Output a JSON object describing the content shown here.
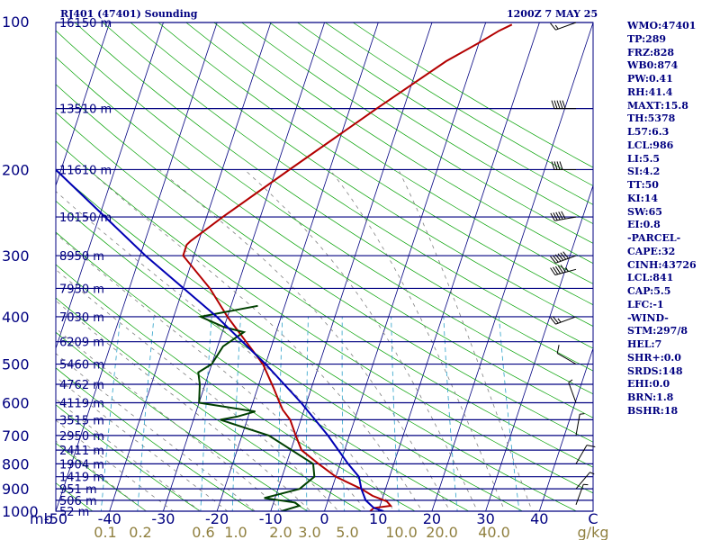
{
  "header": {
    "station": "RJ401 (47401) Sounding",
    "time": "1200Z  7 MAY 25"
  },
  "stats": [
    "WMO:47401",
    "TP:289",
    "FRZ:828",
    "WB0:874",
    "PW:0.41",
    "RH:41.4",
    "MAXT:15.8",
    "TH:5378",
    "L57:6.3",
    "LCL:986",
    "LI:5.5",
    "SI:4.2",
    "TT:50",
    "KI:14",
    "SW:65",
    "EI:0.8",
    "-PARCEL-",
    "CAPE:32",
    "CINH:43726",
    "LCL:841",
    "CAP:5.5",
    "LFC:-1",
    "-WIND-",
    "STM:297/8",
    "HEL:7",
    "SHR+:0.0",
    "SRDS:148",
    "EHI:0.0",
    "BRN:1.8",
    "BSHR:18"
  ],
  "chart_data": {
    "type": "line",
    "title": "RJ401 (47401) Sounding",
    "xlabel": "C",
    "ylabel": "mb",
    "xlim": [
      -50,
      50
    ],
    "ylim": [
      1000,
      100
    ],
    "y_scale": "log",
    "x_ticks": [
      "-50",
      "-40",
      "-30",
      "-20",
      "-10",
      "0",
      "10",
      "20",
      "30",
      "40",
      "C"
    ],
    "mixing_ratio_ticks": [
      "0.1",
      "0.2",
      "0.6",
      "1.0",
      "2.0",
      "3.0",
      "5.0",
      "10.0",
      "20.0",
      "40.0",
      "g/kg"
    ],
    "pressure_ticks": [
      {
        "p": 100,
        "label": "100"
      },
      {
        "p": 200,
        "label": "200"
      },
      {
        "p": 300,
        "label": "300"
      },
      {
        "p": 400,
        "label": "400"
      },
      {
        "p": 500,
        "label": "500"
      },
      {
        "p": 600,
        "label": "600"
      },
      {
        "p": 700,
        "label": "700"
      },
      {
        "p": 800,
        "label": "800"
      },
      {
        "p": 900,
        "label": "900"
      },
      {
        "p": 1000,
        "label": "1000"
      }
    ],
    "height_labels": [
      {
        "p": 100,
        "label": "16150 m"
      },
      {
        "p": 150,
        "label": "13510 m"
      },
      {
        "p": 200,
        "label": "11610 m"
      },
      {
        "p": 250,
        "label": "10150 m"
      },
      {
        "p": 300,
        "label": "8950 m"
      },
      {
        "p": 350,
        "label": "7930 m"
      },
      {
        "p": 400,
        "label": "7030 m"
      },
      {
        "p": 450,
        "label": "6209 m"
      },
      {
        "p": 500,
        "label": "5460 m"
      },
      {
        "p": 550,
        "label": "4762 m"
      },
      {
        "p": 600,
        "label": "4119 m"
      },
      {
        "p": 650,
        "label": "3515 m"
      },
      {
        "p": 700,
        "label": "2950 m"
      },
      {
        "p": 750,
        "label": "2411 m"
      },
      {
        "p": 800,
        "label": "1904 m"
      },
      {
        "p": 850,
        "label": "1419 m"
      },
      {
        "p": 900,
        "label": "951 m"
      },
      {
        "p": 950,
        "label": "506 m"
      },
      {
        "p": 1000,
        "label": "52 m"
      }
    ],
    "series": [
      {
        "name": "Temperature",
        "color": "#b30000",
        "points": [
          [
            1000,
            8.5
          ],
          [
            985,
            9
          ],
          [
            975,
            12
          ],
          [
            955,
            11
          ],
          [
            930,
            8
          ],
          [
            900,
            5.5
          ],
          [
            850,
            0
          ],
          [
            800,
            -4
          ],
          [
            750,
            -8
          ],
          [
            700,
            -10
          ],
          [
            650,
            -12
          ],
          [
            620,
            -14
          ],
          [
            600,
            -15
          ],
          [
            560,
            -17
          ],
          [
            500,
            -20.5
          ],
          [
            450,
            -25
          ],
          [
            400,
            -30
          ],
          [
            350,
            -35
          ],
          [
            300,
            -42
          ],
          [
            285,
            -42
          ],
          [
            280,
            -41.5
          ],
          [
            250,
            -37
          ],
          [
            200,
            -27.5
          ],
          [
            150,
            -15
          ],
          [
            120,
            -5
          ],
          [
            110,
            0
          ],
          [
            104,
            3
          ],
          [
            101,
            5
          ]
        ]
      },
      {
        "name": "Dewpoint",
        "color": "#004000",
        "points": [
          [
            1000,
            -8
          ],
          [
            975,
            -5
          ],
          [
            960,
            -6
          ],
          [
            940,
            -12
          ],
          [
            920,
            -9
          ],
          [
            900,
            -6
          ],
          [
            850,
            -4
          ],
          [
            800,
            -5
          ],
          [
            700,
            -15
          ],
          [
            650,
            -25
          ],
          [
            640,
            -22
          ],
          [
            625,
            -19
          ],
          [
            600,
            -30
          ],
          [
            550,
            -31
          ],
          [
            520,
            -32
          ],
          [
            500,
            -30
          ],
          [
            460,
            -29
          ],
          [
            430,
            -26
          ],
          [
            420,
            -30
          ],
          [
            400,
            -35
          ],
          [
            380,
            -25
          ]
        ]
      },
      {
        "name": "Parcel",
        "color": "#0000b4",
        "points": [
          [
            1000,
            11
          ],
          [
            985,
            9
          ],
          [
            950,
            7
          ],
          [
            900,
            5.5
          ],
          [
            850,
            4.3
          ],
          [
            800,
            1.5
          ],
          [
            700,
            -4
          ],
          [
            600,
            -11
          ],
          [
            500,
            -20
          ],
          [
            400,
            -32
          ],
          [
            300,
            -49
          ],
          [
            200,
            -71
          ],
          [
            150,
            -85
          ],
          [
            120,
            -96
          ],
          [
            100,
            -104
          ]
        ]
      }
    ],
    "wind_barbs": [
      {
        "p": 100,
        "dir": 250,
        "spd": 15
      },
      {
        "p": 150,
        "dir": 270,
        "spd": 50
      },
      {
        "p": 200,
        "dir": 270,
        "spd": 40
      },
      {
        "p": 250,
        "dir": 260,
        "spd": 50
      },
      {
        "p": 300,
        "dir": 250,
        "spd": 60
      },
      {
        "p": 320,
        "dir": 255,
        "spd": 55
      },
      {
        "p": 400,
        "dir": 250,
        "spd": 25
      },
      {
        "p": 500,
        "dir": 300,
        "spd": 10
      },
      {
        "p": 600,
        "dir": 340,
        "spd": 5
      },
      {
        "p": 700,
        "dir": 10,
        "spd": 5
      },
      {
        "p": 800,
        "dir": 30,
        "spd": 10
      },
      {
        "p": 900,
        "dir": 40,
        "spd": 5
      },
      {
        "p": 970,
        "dir": 20,
        "spd": 5
      }
    ]
  }
}
